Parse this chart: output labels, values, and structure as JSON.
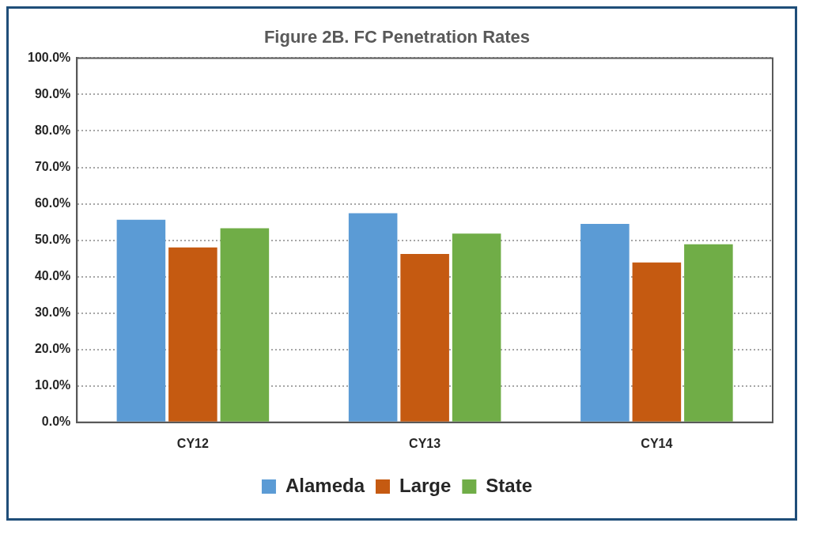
{
  "chart_data": {
    "type": "bar",
    "title": "Figure 2B. FC Penetration Rates",
    "categories": [
      "CY12",
      "CY13",
      "CY14"
    ],
    "series": [
      {
        "name": "Alameda",
        "color": "#5b9bd5",
        "values": [
          55.6,
          57.4,
          54.5
        ]
      },
      {
        "name": "Large",
        "color": "#c55a11",
        "values": [
          48.0,
          46.2,
          43.9
        ]
      },
      {
        "name": "State",
        "color": "#70ad47",
        "values": [
          53.3,
          51.8,
          48.9
        ]
      }
    ],
    "ylim": [
      0,
      100
    ],
    "yticks": [
      {
        "value": 0,
        "label": "0.0%"
      },
      {
        "value": 10,
        "label": "10.0%"
      },
      {
        "value": 20,
        "label": "20.0%"
      },
      {
        "value": 30,
        "label": "30.0%"
      },
      {
        "value": 40,
        "label": "40.0%"
      },
      {
        "value": 50,
        "label": "50.0%"
      },
      {
        "value": 60,
        "label": "60.0%"
      },
      {
        "value": 70,
        "label": "70.0%"
      },
      {
        "value": 80,
        "label": "80.0%"
      },
      {
        "value": 90,
        "label": "90.0%"
      },
      {
        "value": 100,
        "label": "100.0%"
      }
    ],
    "grid": "y",
    "legend": "bottom",
    "line_style": "dotted"
  }
}
